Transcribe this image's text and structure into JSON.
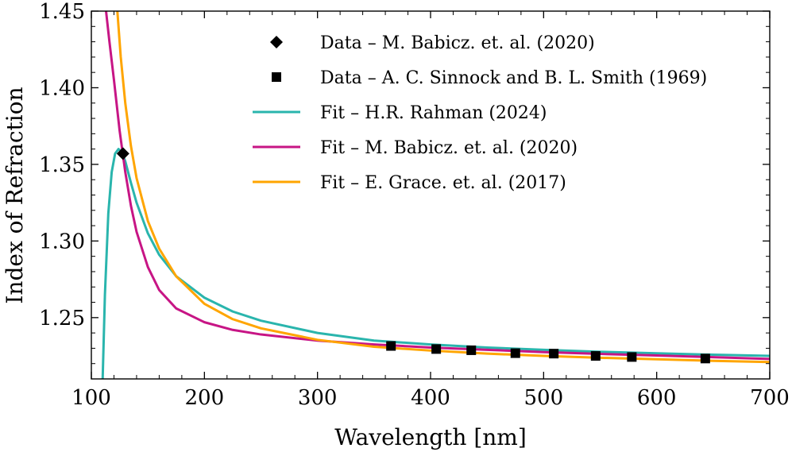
{
  "chart_data": {
    "type": "line",
    "title": "",
    "xlabel": "Wavelength [nm]",
    "ylabel": "Index of Refraction",
    "xlim": [
      100,
      700
    ],
    "ylim": [
      1.21,
      1.45
    ],
    "x_ticks": [
      100,
      200,
      300,
      400,
      500,
      600,
      700
    ],
    "x_tick_labels": [
      "100",
      "200",
      "300",
      "400",
      "500",
      "600",
      "700"
    ],
    "y_ticks": [
      1.25,
      1.3,
      1.35,
      1.4,
      1.45
    ],
    "y_tick_labels": [
      "1.25",
      "1.30",
      "1.35",
      "1.40",
      "1.45"
    ],
    "grid": false,
    "legend_position": "top-right",
    "series": [
      {
        "name": "Data – M. Babicz. et. al. (2020)",
        "kind": "scatter",
        "marker": "diamond",
        "color": "#000000",
        "x": [
          128
        ],
        "y": [
          1.357
        ]
      },
      {
        "name": "Data – A. C. Sinnock and B. L. Smith (1969)",
        "kind": "scatter",
        "marker": "square",
        "color": "#000000",
        "x": [
          365,
          405,
          436,
          475,
          509,
          546,
          578,
          643
        ],
        "y": [
          1.2315,
          1.2295,
          1.2287,
          1.2268,
          1.2265,
          1.225,
          1.2243,
          1.2233
        ]
      },
      {
        "name": "Fit – H.R. Rahman (2024)",
        "kind": "line",
        "color": "#2ab5ad",
        "x": [
          110,
          112,
          115,
          118,
          121,
          124,
          127,
          130,
          135,
          140,
          150,
          160,
          175,
          200,
          225,
          250,
          300,
          350,
          400,
          450,
          500,
          550,
          600,
          650,
          700
        ],
        "y": [
          1.21,
          1.265,
          1.318,
          1.345,
          1.357,
          1.36,
          1.358,
          1.352,
          1.338,
          1.325,
          1.305,
          1.291,
          1.277,
          1.263,
          1.254,
          1.248,
          1.24,
          1.235,
          1.2325,
          1.2305,
          1.229,
          1.2277,
          1.2267,
          1.2258,
          1.225
        ]
      },
      {
        "name": "Fit – M. Babicz. et. al. (2020)",
        "kind": "line",
        "color": "#c71585",
        "x": [
          113,
          116,
          120,
          125,
          130,
          135,
          140,
          150,
          160,
          175,
          200,
          225,
          250,
          300,
          350,
          400,
          450,
          500,
          550,
          600,
          650,
          700
        ],
        "y": [
          1.45,
          1.43,
          1.405,
          1.372,
          1.345,
          1.323,
          1.306,
          1.283,
          1.268,
          1.256,
          1.247,
          1.242,
          1.239,
          1.235,
          1.2325,
          1.2305,
          1.229,
          1.2275,
          1.2263,
          1.2253,
          1.2242,
          1.223
        ]
      },
      {
        "name": "Fit – E. Grace. et. al. (2017)",
        "kind": "line",
        "color": "#ffa500",
        "x": [
          123,
          126,
          130,
          135,
          140,
          150,
          160,
          175,
          200,
          225,
          250,
          300,
          350,
          400,
          450,
          500,
          550,
          600,
          650,
          700
        ],
        "y": [
          1.45,
          1.42,
          1.39,
          1.362,
          1.341,
          1.313,
          1.295,
          1.277,
          1.259,
          1.249,
          1.243,
          1.2355,
          1.231,
          1.2285,
          1.2265,
          1.225,
          1.2238,
          1.2228,
          1.2218,
          1.221
        ]
      }
    ]
  }
}
